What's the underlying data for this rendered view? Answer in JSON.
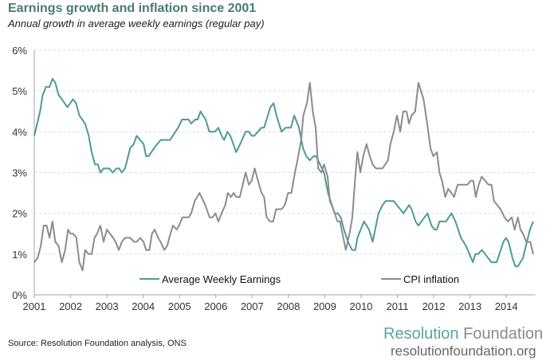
{
  "chart_data": {
    "type": "line",
    "title": "Earnings growth and inflation since 2001",
    "subtitle": "Annual growth in average weekly earnings (regular pay)",
    "xlabel": "",
    "ylabel": "",
    "xlim": [
      2001,
      2014.8
    ],
    "ylim": [
      0,
      6
    ],
    "x_ticks": [
      "2001",
      "2002",
      "2003",
      "2004",
      "2005",
      "2006",
      "2007",
      "2008",
      "2009",
      "2010",
      "2011",
      "2012",
      "2013",
      "2014"
    ],
    "y_ticks": [
      "0%",
      "1%",
      "2%",
      "3%",
      "4%",
      "5%",
      "6%"
    ],
    "grid": "horizontal dashed",
    "legend": "bottom",
    "series": [
      {
        "name": "Average Weekly Earnings",
        "color": "#4e9a96",
        "x": [
          2001.0,
          2001.16,
          2001.23,
          2001.32,
          2001.42,
          2001.5,
          2001.58,
          2001.67,
          2001.76,
          2001.91,
          2002.07,
          2002.15,
          2002.24,
          2002.4,
          2002.5,
          2002.58,
          2002.67,
          2002.75,
          2002.82,
          2002.91,
          2003.06,
          2003.17,
          2003.26,
          2003.34,
          2003.41,
          2003.5,
          2003.57,
          2003.64,
          2003.74,
          2003.82,
          2004.01,
          2004.08,
          2004.15,
          2004.3,
          2004.48,
          2004.74,
          2004.96,
          2005.07,
          2005.25,
          2005.32,
          2005.43,
          2005.5,
          2005.58,
          2005.72,
          2005.82,
          2005.98,
          2006.07,
          2006.16,
          2006.23,
          2006.32,
          2006.4,
          2006.56,
          2006.67,
          2006.82,
          2006.91,
          2006.99,
          2007.06,
          2007.26,
          2007.33,
          2007.4,
          2007.5,
          2007.59,
          2007.67,
          2007.81,
          2007.92,
          2008.07,
          2008.16,
          2008.29,
          2008.4,
          2008.49,
          2008.59,
          2008.69,
          2008.76,
          2008.87,
          2008.98,
          2009.09,
          2009.16,
          2009.27,
          2009.36,
          2009.44,
          2009.53,
          2009.64,
          2009.75,
          2009.84,
          2009.9,
          2010.08,
          2010.22,
          2010.32,
          2010.48,
          2010.59,
          2010.68,
          2010.9,
          2011.17,
          2011.32,
          2011.39,
          2011.5,
          2011.58,
          2011.83,
          2011.94,
          2012.02,
          2012.09,
          2012.16,
          2012.34,
          2012.49,
          2012.6,
          2012.75,
          2012.89,
          2013.08,
          2013.15,
          2013.22,
          2013.33,
          2013.59,
          2013.73,
          2013.81,
          2013.92,
          2013.99,
          2014.06,
          2014.17,
          2014.25,
          2014.32,
          2014.46,
          2014.54,
          2014.65,
          2014.74
        ],
        "values": [
          3.9,
          4.5,
          4.9,
          5.1,
          5.1,
          5.3,
          5.2,
          4.9,
          4.8,
          4.6,
          4.8,
          4.7,
          4.4,
          4.2,
          3.9,
          3.5,
          3.2,
          3.2,
          3.0,
          3.1,
          3.1,
          3.0,
          3.1,
          3.1,
          3.0,
          3.1,
          3.35,
          3.6,
          3.7,
          3.9,
          3.7,
          3.4,
          3.4,
          3.6,
          3.8,
          3.8,
          4.1,
          4.3,
          4.3,
          4.2,
          4.3,
          4.3,
          4.5,
          4.3,
          4.0,
          4.0,
          4.1,
          3.9,
          3.8,
          4.0,
          3.9,
          3.5,
          3.7,
          4.0,
          4.0,
          3.9,
          3.9,
          4.1,
          4.1,
          4.3,
          4.6,
          4.7,
          4.4,
          4.0,
          4.1,
          4.1,
          4.4,
          4.1,
          3.6,
          3.4,
          3.3,
          3.4,
          3.4,
          3.2,
          3.0,
          2.5,
          2.3,
          2.0,
          2.0,
          1.9,
          1.6,
          1.3,
          1.1,
          1.1,
          1.4,
          1.8,
          1.6,
          1.3,
          2.0,
          2.2,
          2.3,
          2.3,
          2.0,
          2.2,
          2.1,
          1.8,
          1.7,
          2.0,
          1.7,
          1.6,
          1.6,
          1.8,
          1.8,
          2.0,
          1.8,
          1.4,
          1.2,
          0.8,
          1.0,
          1.0,
          1.1,
          0.8,
          0.8,
          1.0,
          1.3,
          1.4,
          1.3,
          0.9,
          0.7,
          0.7,
          0.9,
          1.2,
          1.6,
          1.8
        ]
      },
      {
        "name": "CPI inflation",
        "color": "#8c8c8c",
        "x": [
          2001.0,
          2001.09,
          2001.18,
          2001.26,
          2001.34,
          2001.42,
          2001.5,
          2001.58,
          2001.67,
          2001.76,
          2001.85,
          2001.93,
          2002.0,
          2002.07,
          2002.16,
          2002.24,
          2002.33,
          2002.4,
          2002.49,
          2002.58,
          2002.66,
          2002.73,
          2002.82,
          2002.91,
          2003.0,
          2003.17,
          2003.24,
          2003.33,
          2003.41,
          2003.5,
          2003.64,
          2003.75,
          2003.82,
          2003.92,
          2004.01,
          2004.08,
          2004.17,
          2004.24,
          2004.32,
          2004.41,
          2004.48,
          2004.58,
          2004.66,
          2004.75,
          2004.82,
          2004.92,
          2004.99,
          2005.08,
          2005.25,
          2005.32,
          2005.42,
          2005.55,
          2005.71,
          2005.83,
          2005.91,
          2005.99,
          2006.07,
          2006.16,
          2006.26,
          2006.33,
          2006.42,
          2006.49,
          2006.56,
          2006.66,
          2006.74,
          2006.82,
          2006.91,
          2006.99,
          2007.07,
          2007.16,
          2007.26,
          2007.33,
          2007.4,
          2007.49,
          2007.58,
          2007.66,
          2007.73,
          2007.81,
          2007.9,
          2007.99,
          2008.08,
          2008.18,
          2008.25,
          2008.35,
          2008.41,
          2008.51,
          2008.59,
          2008.67,
          2008.75,
          2008.82,
          2008.91,
          2008.98,
          2009.08,
          2009.14,
          2009.24,
          2009.35,
          2009.42,
          2009.49,
          2009.58,
          2009.68,
          2009.76,
          2009.84,
          2009.9,
          2009.98,
          2010.06,
          2010.15,
          2010.24,
          2010.32,
          2010.41,
          2010.59,
          2010.74,
          2010.81,
          2010.9,
          2010.99,
          2011.08,
          2011.16,
          2011.25,
          2011.32,
          2011.39,
          2011.49,
          2011.58,
          2011.72,
          2011.82,
          2011.91,
          2011.99,
          2012.09,
          2012.16,
          2012.23,
          2012.32,
          2012.4,
          2012.49,
          2012.56,
          2012.66,
          2012.93,
          2013.02,
          2013.09,
          2013.16,
          2013.24,
          2013.32,
          2013.51,
          2013.59,
          2013.66,
          2013.84,
          2013.95,
          2014.04,
          2014.15,
          2014.23,
          2014.32,
          2014.39,
          2014.46,
          2014.55,
          2014.66,
          2014.74
        ],
        "values": [
          0.8,
          0.9,
          1.2,
          1.7,
          1.7,
          1.4,
          1.8,
          1.3,
          1.2,
          0.8,
          1.1,
          1.6,
          1.5,
          1.5,
          1.4,
          0.8,
          0.6,
          1.1,
          1.0,
          1.0,
          1.4,
          1.5,
          1.7,
          1.3,
          1.6,
          1.4,
          1.3,
          1.1,
          1.3,
          1.4,
          1.4,
          1.3,
          1.3,
          1.4,
          1.3,
          1.1,
          1.1,
          1.5,
          1.6,
          1.4,
          1.3,
          1.1,
          1.2,
          1.5,
          1.7,
          1.6,
          1.7,
          1.9,
          1.9,
          2.0,
          2.3,
          2.5,
          2.2,
          1.9,
          1.9,
          2.0,
          1.8,
          2.0,
          2.2,
          2.5,
          2.4,
          2.5,
          2.4,
          2.4,
          2.7,
          3.0,
          2.7,
          2.8,
          3.1,
          2.8,
          2.5,
          2.4,
          1.9,
          1.8,
          1.8,
          2.1,
          2.1,
          2.1,
          2.2,
          2.5,
          2.5,
          3.0,
          3.3,
          3.8,
          4.4,
          4.7,
          5.2,
          4.5,
          4.1,
          3.1,
          3.0,
          3.2,
          2.9,
          2.3,
          2.1,
          1.8,
          1.8,
          1.5,
          1.1,
          1.5,
          1.9,
          2.9,
          3.5,
          3.0,
          3.4,
          3.7,
          3.4,
          3.2,
          3.1,
          3.1,
          3.3,
          3.7,
          4.0,
          4.4,
          4.0,
          4.5,
          4.5,
          4.2,
          4.4,
          4.5,
          5.2,
          4.8,
          4.2,
          3.6,
          3.4,
          3.5,
          3.0,
          2.8,
          2.4,
          2.6,
          2.5,
          2.4,
          2.7,
          2.7,
          2.8,
          2.8,
          2.4,
          2.7,
          2.9,
          2.7,
          2.7,
          2.3,
          2.1,
          1.9,
          1.8,
          1.9,
          1.6,
          1.9,
          1.6,
          1.5,
          1.3,
          1.3,
          1.0
        ]
      }
    ]
  },
  "source": "Source: Resolution Foundation analysis, ONS",
  "logo": {
    "name_a": "Resolution",
    "name_b": " Foundation",
    "url": "resolutionfoundation.org"
  }
}
